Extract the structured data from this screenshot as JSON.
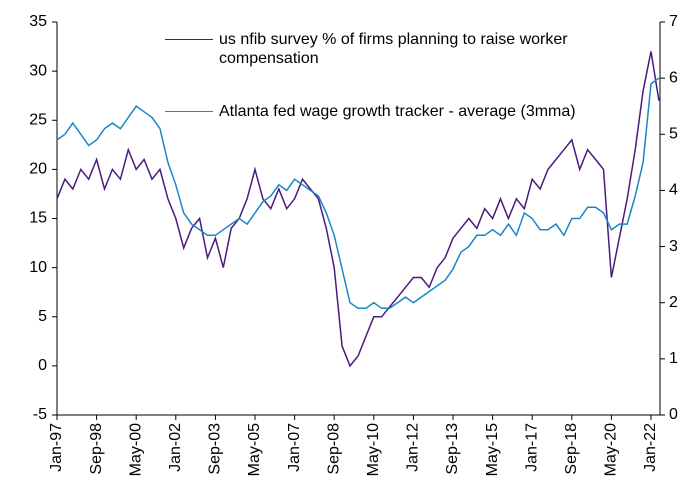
{
  "chart_data": {
    "type": "line",
    "categories": [
      "Jan-97",
      null,
      null,
      null,
      null,
      "Sep-98",
      null,
      null,
      null,
      null,
      "May-00",
      null,
      null,
      null,
      null,
      "Jan-02",
      null,
      null,
      null,
      null,
      "Sep-03",
      null,
      null,
      null,
      null,
      "May-05",
      null,
      null,
      null,
      null,
      "Jan-07",
      null,
      null,
      null,
      null,
      "Sep-08",
      null,
      null,
      null,
      null,
      "May-10",
      null,
      null,
      null,
      null,
      "Jan-12",
      null,
      null,
      null,
      null,
      "Sep-13",
      null,
      null,
      null,
      null,
      "May-15",
      null,
      null,
      null,
      null,
      "Jan-17",
      null,
      null,
      null,
      null,
      "Sep-18",
      null,
      null,
      null,
      null,
      "May-20",
      null,
      null,
      null,
      null,
      "Jan-22",
      null
    ],
    "series": [
      {
        "name": "us nfib survey % of firms planning to raise worker compensation",
        "color": "#4b1a7d",
        "axis": "y",
        "values": [
          17,
          19,
          18,
          20,
          19,
          21,
          18,
          20,
          19,
          22,
          20,
          21,
          19,
          20,
          17,
          15,
          12,
          14,
          15,
          11,
          13,
          10,
          14,
          15,
          17,
          20,
          17,
          16,
          18,
          16,
          17,
          19,
          18,
          17,
          14,
          10,
          2,
          0,
          1,
          3,
          5,
          5,
          6,
          7,
          8,
          9,
          9,
          8,
          10,
          11,
          13,
          14,
          15,
          14,
          16,
          15,
          17,
          15,
          17,
          16,
          19,
          18,
          20,
          21,
          22,
          23,
          20,
          22,
          21,
          20,
          9,
          13,
          17,
          22,
          28,
          32,
          27
        ]
      },
      {
        "name": "Atlanta fed wage growth tracker - average (3mma)",
        "color": "#1a86c7",
        "axis": "y2",
        "values": [
          4.9,
          5.0,
          5.2,
          5.0,
          4.8,
          4.9,
          5.1,
          5.2,
          5.1,
          5.3,
          5.5,
          5.4,
          5.3,
          5.1,
          4.5,
          4.1,
          3.6,
          3.4,
          3.3,
          3.2,
          3.2,
          3.3,
          3.4,
          3.5,
          3.4,
          3.6,
          3.8,
          3.9,
          4.1,
          4.0,
          4.2,
          4.1,
          4.0,
          3.9,
          3.6,
          3.2,
          2.6,
          2.0,
          1.9,
          1.9,
          2.0,
          1.9,
          1.9,
          2.0,
          2.1,
          2.0,
          2.1,
          2.2,
          2.3,
          2.4,
          2.6,
          2.9,
          3.0,
          3.2,
          3.2,
          3.3,
          3.2,
          3.4,
          3.2,
          3.6,
          3.5,
          3.3,
          3.3,
          3.4,
          3.2,
          3.5,
          3.5,
          3.7,
          3.7,
          3.6,
          3.3,
          3.4,
          3.4,
          3.9,
          4.5,
          5.9,
          6.0
        ]
      }
    ],
    "ylim": [
      -5,
      35
    ],
    "yticks": [
      -5,
      0,
      5,
      10,
      15,
      20,
      25,
      30,
      35
    ],
    "y2lim": [
      0,
      7
    ],
    "y2ticks": [
      0,
      1,
      2,
      3,
      4,
      5,
      6,
      7
    ]
  }
}
